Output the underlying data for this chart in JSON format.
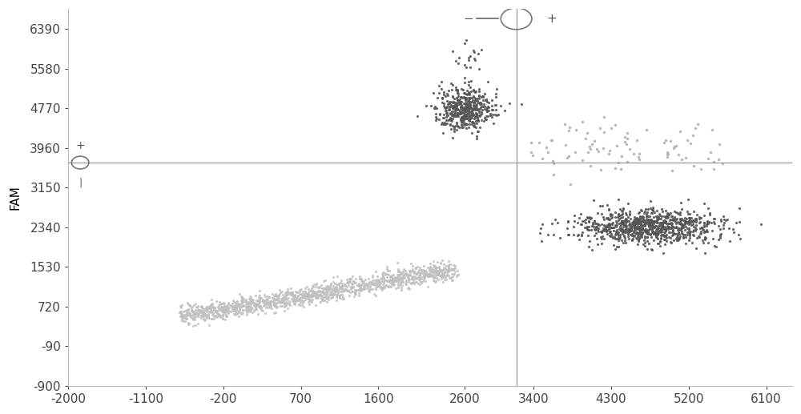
{
  "title": "",
  "xlabel": "",
  "ylabel": "FAM",
  "xlim": [
    -2000,
    6400
  ],
  "ylim": [
    -900,
    6800
  ],
  "xticks": [
    -2000,
    -1100,
    -200,
    700,
    1600,
    2600,
    3400,
    4300,
    5200,
    6100
  ],
  "yticks": [
    -900,
    -90,
    720,
    1530,
    2340,
    3150,
    3960,
    4770,
    5580,
    6390
  ],
  "xticklabels": [
    "-2000",
    "-1100",
    "-200",
    "700",
    "1600",
    "2600",
    "3400",
    "4300",
    "5200",
    "6100"
  ],
  "yticklabels": [
    "-900",
    "-90",
    "720",
    "1530",
    "2340",
    "3150",
    "3960",
    "4770",
    "5580",
    "6390"
  ],
  "hline_y": 3660,
  "vline_x": 3200,
  "cluster1_x_mean": 2600,
  "cluster1_x_std": 170,
  "cluster1_y_mean": 4750,
  "cluster1_y_std": 220,
  "cluster1_n": 480,
  "cluster1_color": "#555555",
  "cluster2_x_mean": 4700,
  "cluster2_x_std": 420,
  "cluster2_y_mean": 2350,
  "cluster2_y_std": 180,
  "cluster2_n": 900,
  "cluster2_color": "#555555",
  "cluster3_x_center": 900,
  "cluster3_y_center": 1000,
  "cluster3_n": 1400,
  "cluster3_color": "#c0c0c0",
  "cluster4_n": 90,
  "cluster4_color": "#b0b0b0",
  "scatter_size": 5,
  "background_color": "#ffffff",
  "axis_line_color": "#999999",
  "font_size": 11
}
